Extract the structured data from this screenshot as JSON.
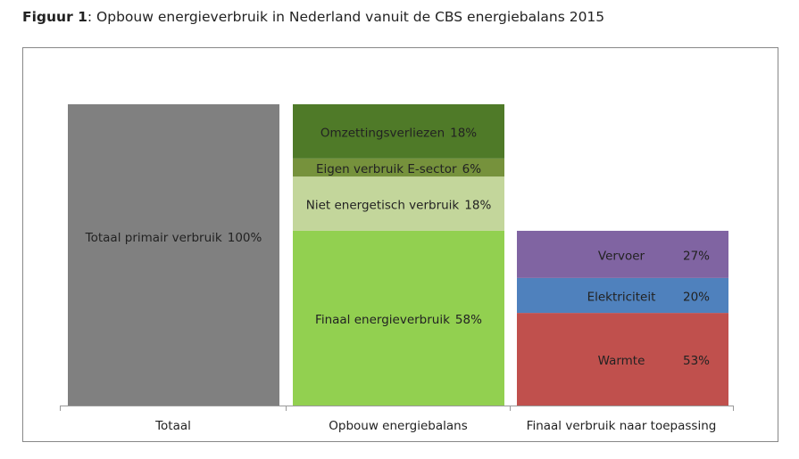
{
  "chart_data": {
    "type": "stacked-bar",
    "figure_label": "Figuur 1",
    "title": ": Opbouw energieverbruik in Nederland vanuit de CBS energiebalans 2015",
    "categories": [
      "Totaal",
      "Opbouw energiebalans",
      "Finaal verbruik naar toepassing"
    ],
    "stacks": [
      {
        "segments": [
          {
            "name": "Totaal primair verbruik",
            "value": 100,
            "value_label": "100%",
            "color": "#808080"
          }
        ]
      },
      {
        "segments": [
          {
            "name": "Finaal energieverbruik",
            "value": 58,
            "value_label": "58%",
            "color": "#92d050"
          },
          {
            "name": "Niet energetisch verbruik",
            "value": 18,
            "value_label": "18%",
            "color": "#c3d69b"
          },
          {
            "name": "Eigen verbruik E-sector",
            "value": 6,
            "value_label": "6%",
            "color": "#76923c"
          },
          {
            "name": "Omzettingsverliezen",
            "value": 18,
            "value_label": "18%",
            "color": "#4f7a28"
          }
        ]
      },
      {
        "segments": [
          {
            "name": "Warmte",
            "value": 53,
            "value_label": "53%",
            "color": "#c0504d"
          },
          {
            "name": "Elektriciteit",
            "value": 20,
            "value_label": "20%",
            "color": "#4f81bd"
          },
          {
            "name": "Vervoer",
            "value": 27,
            "value_label": "27%",
            "color": "#8064a2"
          }
        ]
      }
    ]
  }
}
